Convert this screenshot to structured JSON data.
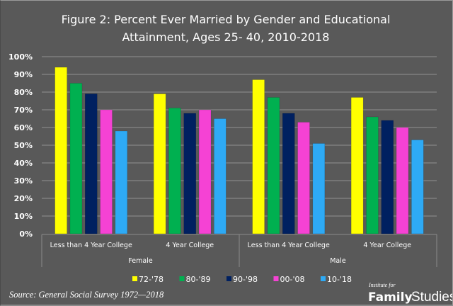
{
  "chart_data": {
    "type": "bar",
    "title_lines": [
      "Figure 2: Percent Ever Married by Gender and Educational",
      "Attainment, Ages 25- 40, 2010-2018"
    ],
    "xlabel": "",
    "ylabel": "",
    "ylim": [
      0,
      100
    ],
    "yticks": [
      0,
      10,
      20,
      30,
      40,
      50,
      60,
      70,
      80,
      90,
      100
    ],
    "ytick_labels": [
      "0%",
      "10%",
      "20%",
      "30%",
      "40%",
      "50%",
      "60%",
      "70%",
      "80%",
      "90%",
      "100%"
    ],
    "grid": true,
    "categories": [
      "Less than 4 Year College",
      "4 Year College",
      "Less than 4 Year College",
      "4 Year College"
    ],
    "groups": [
      {
        "label": "Female",
        "categories": [
          "Less than 4 Year College",
          "4 Year College"
        ]
      },
      {
        "label": "Male",
        "categories": [
          "Less than 4 Year College",
          "4 Year College"
        ]
      }
    ],
    "series": [
      {
        "name": "72-'78",
        "color": "#ffff00",
        "values": [
          94,
          79,
          87,
          77
        ]
      },
      {
        "name": "80-'89",
        "color": "#00b050",
        "values": [
          85,
          71,
          77,
          66
        ]
      },
      {
        "name": "90-'98",
        "color": "#002060",
        "values": [
          79,
          68,
          68,
          64
        ]
      },
      {
        "name": "00-'08",
        "color": "#f542d4",
        "values": [
          70,
          70,
          63,
          60
        ]
      },
      {
        "name": "10-'18",
        "color": "#2eaaf5",
        "values": [
          58,
          65,
          51,
          53
        ]
      }
    ],
    "legend_position": "bottom"
  },
  "footer": {
    "source": "Source: General Social Survey 1972—2018",
    "logo_small": "Institute for",
    "logo_bold": "Family",
    "logo_light": "Studies"
  },
  "colors": {
    "background": "#595959",
    "gridline": "#7f7f7f",
    "axis": "#8c8c8c"
  }
}
